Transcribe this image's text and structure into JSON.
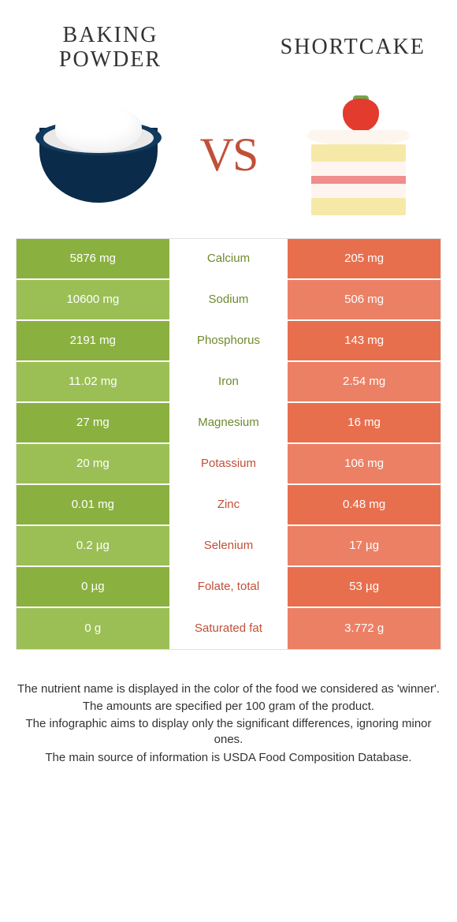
{
  "colors": {
    "green_dark": "#8ab040",
    "green_light": "#9bbf55",
    "orange_dark": "#e86f4e",
    "orange_light": "#ec8064",
    "mid_green_text": "#6e8a2d",
    "mid_orange_text": "#c05038",
    "white": "#ffffff"
  },
  "left_food": {
    "title": "Baking\nPowder"
  },
  "right_food": {
    "title": "Shortcake"
  },
  "vs_label": "VS",
  "rows": [
    {
      "nutrient": "Calcium",
      "left": "5876 mg",
      "right": "205 mg",
      "winner": "left"
    },
    {
      "nutrient": "Sodium",
      "left": "10600 mg",
      "right": "506 mg",
      "winner": "left"
    },
    {
      "nutrient": "Phosphorus",
      "left": "2191 mg",
      "right": "143 mg",
      "winner": "left"
    },
    {
      "nutrient": "Iron",
      "left": "11.02 mg",
      "right": "2.54 mg",
      "winner": "left"
    },
    {
      "nutrient": "Magnesium",
      "left": "27 mg",
      "right": "16 mg",
      "winner": "left"
    },
    {
      "nutrient": "Potassium",
      "left": "20 mg",
      "right": "106 mg",
      "winner": "right"
    },
    {
      "nutrient": "Zinc",
      "left": "0.01 mg",
      "right": "0.48 mg",
      "winner": "right"
    },
    {
      "nutrient": "Selenium",
      "left": "0.2 µg",
      "right": "17 µg",
      "winner": "right"
    },
    {
      "nutrient": "Folate, total",
      "left": "0 µg",
      "right": "53 µg",
      "winner": "right"
    },
    {
      "nutrient": "Saturated fat",
      "left": "0 g",
      "right": "3.772 g",
      "winner": "right"
    }
  ],
  "footer_lines": [
    "The nutrient name is displayed in the color of the food we considered as 'winner'.",
    "The amounts are specified per 100 gram of the product.",
    "The infographic aims to display only the significant differences, ignoring minor ones.",
    "The main source of information is USDA Food Composition Database."
  ]
}
